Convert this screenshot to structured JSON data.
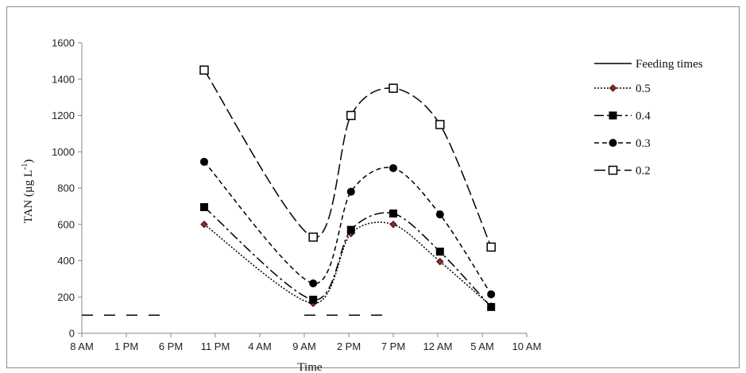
{
  "chart_data": {
    "type": "line",
    "xlabel": "Time",
    "ylabel_main": "TAN (µg L",
    "ylabel_sup": "-1",
    "ylabel_close": ")",
    "x_tick_labels": [
      "8 AM",
      "1 PM",
      "6 PM",
      "11 PM",
      "4 AM",
      "9 AM",
      "2 PM",
      "7 PM",
      "12 AM",
      "5 AM",
      "10 AM"
    ],
    "y_ticks": [
      0,
      200,
      400,
      600,
      800,
      1000,
      1200,
      1400,
      1600
    ],
    "xlim": [
      0,
      10
    ],
    "ylim": [
      0,
      1600
    ],
    "feeding_times": {
      "name": "Feeding times",
      "value": 100,
      "segments": [
        [
          0,
          2
        ],
        [
          5,
          7
        ]
      ]
    },
    "series": [
      {
        "name": "0.5",
        "marker": "diamond",
        "color": "#8b2a2a",
        "dash": "2,2",
        "x": [
          2.75,
          5.2,
          6.05,
          7.0,
          8.05,
          9.2
        ],
        "y": [
          600,
          165,
          550,
          600,
          395,
          150
        ]
      },
      {
        "name": "0.4",
        "marker": "square",
        "color": "#000000",
        "dash": "12,4,3,4",
        "x": [
          2.75,
          5.2,
          6.05,
          7.0,
          8.05,
          9.2
        ],
        "y": [
          695,
          185,
          570,
          660,
          450,
          145
        ]
      },
      {
        "name": "0.3",
        "marker": "circle",
        "color": "#000000",
        "dash": "6,4",
        "x": [
          2.75,
          5.2,
          6.05,
          7.0,
          8.05,
          9.2
        ],
        "y": [
          945,
          275,
          780,
          910,
          655,
          215
        ]
      },
      {
        "name": "0.2",
        "marker": "open-square",
        "color": "#000000",
        "dash": "14,5",
        "x": [
          2.75,
          5.2,
          6.05,
          7.0,
          8.05,
          9.2
        ],
        "y": [
          1450,
          530,
          1200,
          1350,
          1150,
          475
        ]
      }
    ]
  }
}
